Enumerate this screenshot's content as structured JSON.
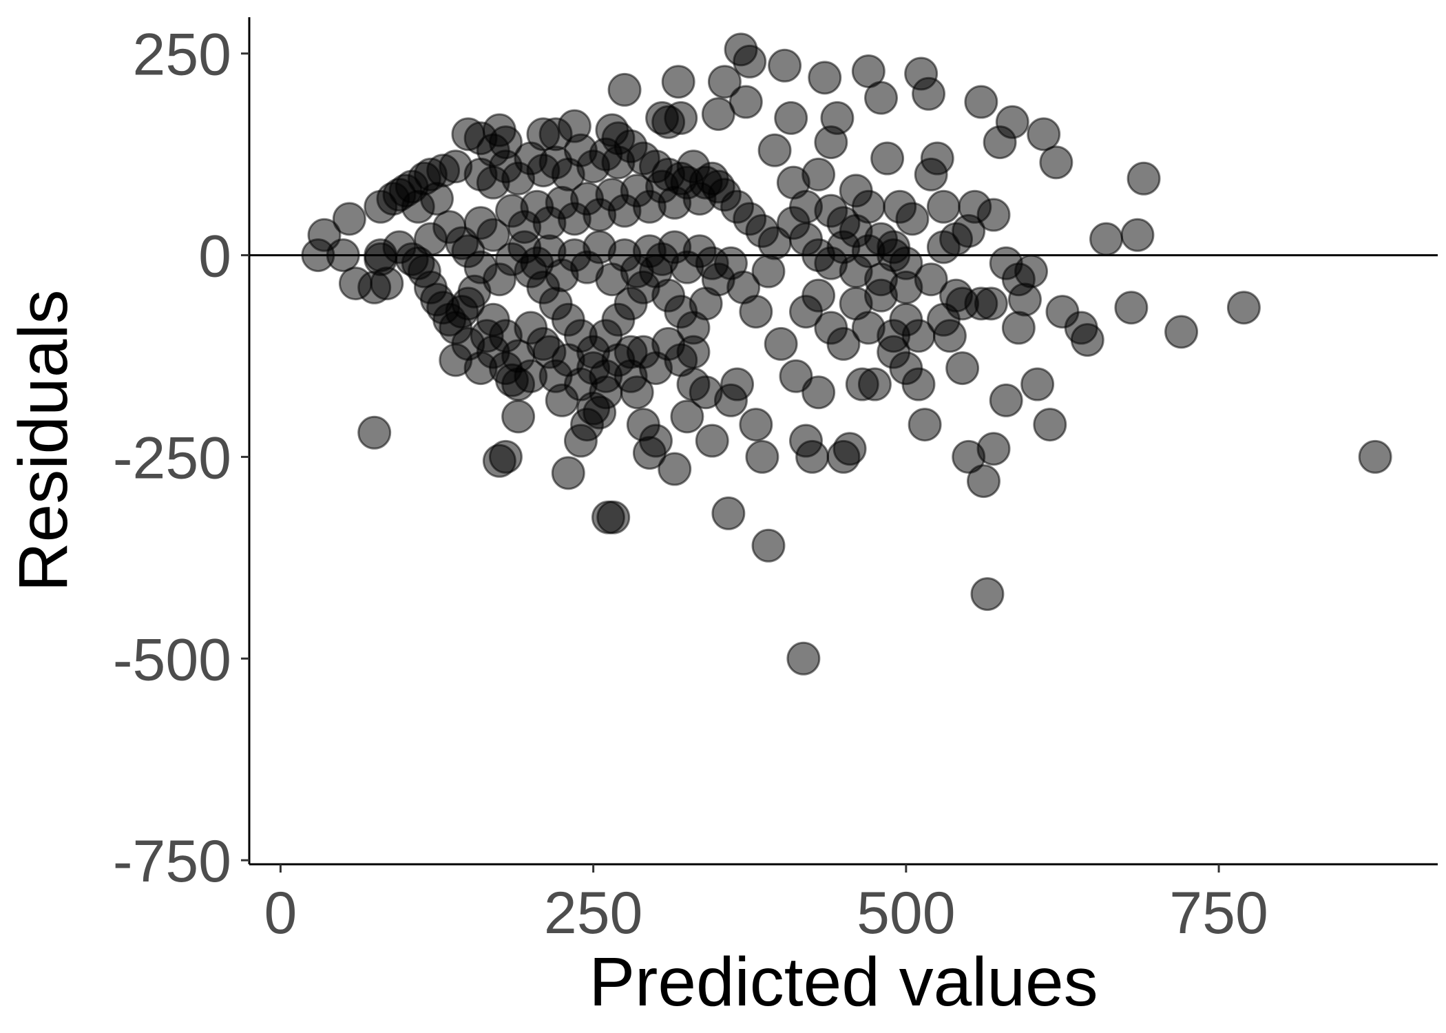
{
  "chart_data": {
    "type": "scatter",
    "xlabel": "Predicted values",
    "ylabel": "Residuals",
    "xlim": [
      -25,
      925
    ],
    "ylim": [
      -755,
      295
    ],
    "x_ticks": [
      0,
      250,
      500,
      750
    ],
    "x_tick_labels": [
      "0",
      "250",
      "500",
      "750"
    ],
    "y_ticks": [
      250,
      0,
      -250,
      -500,
      -750
    ],
    "y_tick_labels": [
      "250",
      "0",
      "-250",
      "-500",
      "-750"
    ],
    "reference_line_y": 0,
    "grid": false,
    "legend": "none",
    "point_color": "#000000",
    "point_alpha": 0.5,
    "points": [
      [
        30,
        0
      ],
      [
        35,
        25
      ],
      [
        50,
        0
      ],
      [
        55,
        45
      ],
      [
        60,
        -35
      ],
      [
        75,
        -220
      ],
      [
        75,
        -40
      ],
      [
        80,
        60
      ],
      [
        80,
        0
      ],
      [
        85,
        -35
      ],
      [
        90,
        70
      ],
      [
        95,
        75
      ],
      [
        100,
        80
      ],
      [
        105,
        85
      ],
      [
        110,
        60
      ],
      [
        115,
        95
      ],
      [
        120,
        100
      ],
      [
        125,
        70
      ],
      [
        130,
        105
      ],
      [
        140,
        110
      ],
      [
        110,
        -10
      ],
      [
        115,
        -20
      ],
      [
        120,
        -40
      ],
      [
        125,
        -55
      ],
      [
        130,
        -65
      ],
      [
        135,
        -80
      ],
      [
        140,
        -90
      ],
      [
        145,
        -70
      ],
      [
        150,
        -60
      ],
      [
        155,
        -45
      ],
      [
        150,
        150
      ],
      [
        160,
        145
      ],
      [
        170,
        130
      ],
      [
        175,
        155
      ],
      [
        180,
        140
      ],
      [
        165,
        -100
      ],
      [
        170,
        -120
      ],
      [
        180,
        -140
      ],
      [
        185,
        -155
      ],
      [
        190,
        -160
      ],
      [
        175,
        -255
      ],
      [
        180,
        -250
      ],
      [
        190,
        -200
      ],
      [
        200,
        -150
      ],
      [
        210,
        150
      ],
      [
        215,
        -120
      ],
      [
        220,
        150
      ],
      [
        225,
        -180
      ],
      [
        230,
        -270
      ],
      [
        235,
        160
      ],
      [
        240,
        -230
      ],
      [
        245,
        -210
      ],
      [
        250,
        -190
      ],
      [
        255,
        -195
      ],
      [
        260,
        -170
      ],
      [
        262,
        -325
      ],
      [
        266,
        -325
      ],
      [
        265,
        155
      ],
      [
        270,
        145
      ],
      [
        275,
        205
      ],
      [
        280,
        -120
      ],
      [
        285,
        -170
      ],
      [
        290,
        -210
      ],
      [
        295,
        -245
      ],
      [
        300,
        -230
      ],
      [
        305,
        170
      ],
      [
        310,
        165
      ],
      [
        315,
        -265
      ],
      [
        318,
        215
      ],
      [
        320,
        170
      ],
      [
        325,
        -200
      ],
      [
        330,
        -160
      ],
      [
        340,
        -170
      ],
      [
        345,
        -230
      ],
      [
        350,
        175
      ],
      [
        355,
        215
      ],
      [
        358,
        -320
      ],
      [
        360,
        -180
      ],
      [
        365,
        -160
      ],
      [
        368,
        255
      ],
      [
        372,
        190
      ],
      [
        375,
        240
      ],
      [
        380,
        -210
      ],
      [
        385,
        -250
      ],
      [
        390,
        -360
      ],
      [
        395,
        130
      ],
      [
        400,
        -110
      ],
      [
        403,
        235
      ],
      [
        408,
        170
      ],
      [
        412,
        -150
      ],
      [
        418,
        -500
      ],
      [
        420,
        -230
      ],
      [
        425,
        -250
      ],
      [
        430,
        -170
      ],
      [
        435,
        220
      ],
      [
        440,
        140
      ],
      [
        445,
        170
      ],
      [
        450,
        -250
      ],
      [
        455,
        -240
      ],
      [
        460,
        80
      ],
      [
        465,
        -160
      ],
      [
        470,
        228
      ],
      [
        475,
        -160
      ],
      [
        480,
        195
      ],
      [
        485,
        120
      ],
      [
        490,
        -100
      ],
      [
        495,
        60
      ],
      [
        500,
        -80
      ],
      [
        505,
        45
      ],
      [
        510,
        -160
      ],
      [
        512,
        225
      ],
      [
        515,
        -210
      ],
      [
        518,
        200
      ],
      [
        520,
        100
      ],
      [
        525,
        120
      ],
      [
        530,
        -80
      ],
      [
        535,
        -100
      ],
      [
        540,
        20
      ],
      [
        545,
        -140
      ],
      [
        550,
        -250
      ],
      [
        555,
        60
      ],
      [
        560,
        190
      ],
      [
        562,
        -280
      ],
      [
        565,
        -420
      ],
      [
        568,
        -60
      ],
      [
        570,
        -240
      ],
      [
        575,
        140
      ],
      [
        580,
        -180
      ],
      [
        585,
        165
      ],
      [
        590,
        -90
      ],
      [
        595,
        -55
      ],
      [
        600,
        -20
      ],
      [
        605,
        -160
      ],
      [
        610,
        150
      ],
      [
        615,
        -210
      ],
      [
        620,
        115
      ],
      [
        625,
        -70
      ],
      [
        640,
        -90
      ],
      [
        645,
        -105
      ],
      [
        660,
        20
      ],
      [
        680,
        -65
      ],
      [
        685,
        25
      ],
      [
        690,
        95
      ],
      [
        720,
        -95
      ],
      [
        770,
        -65
      ],
      [
        875,
        -250
      ],
      [
        80,
        -5
      ],
      [
        95,
        10
      ],
      [
        105,
        -5
      ],
      [
        120,
        20
      ],
      [
        135,
        35
      ],
      [
        145,
        15
      ],
      [
        160,
        40
      ],
      [
        170,
        25
      ],
      [
        185,
        55
      ],
      [
        195,
        35
      ],
      [
        205,
        60
      ],
      [
        215,
        40
      ],
      [
        225,
        65
      ],
      [
        235,
        45
      ],
      [
        245,
        70
      ],
      [
        255,
        50
      ],
      [
        265,
        75
      ],
      [
        275,
        55
      ],
      [
        285,
        80
      ],
      [
        295,
        60
      ],
      [
        305,
        85
      ],
      [
        315,
        65
      ],
      [
        325,
        90
      ],
      [
        335,
        70
      ],
      [
        345,
        95
      ],
      [
        355,
        75
      ],
      [
        365,
        60
      ],
      [
        375,
        45
      ],
      [
        385,
        30
      ],
      [
        395,
        15
      ],
      [
        200,
        -20
      ],
      [
        210,
        -40
      ],
      [
        220,
        -60
      ],
      [
        230,
        -80
      ],
      [
        240,
        -100
      ],
      [
        250,
        -120
      ],
      [
        260,
        -100
      ],
      [
        270,
        -80
      ],
      [
        280,
        -60
      ],
      [
        290,
        -40
      ],
      [
        300,
        -20
      ],
      [
        310,
        -50
      ],
      [
        320,
        -70
      ],
      [
        330,
        -90
      ],
      [
        340,
        -60
      ],
      [
        350,
        -30
      ],
      [
        360,
        -10
      ],
      [
        370,
        -40
      ],
      [
        380,
        -70
      ],
      [
        390,
        -20
      ],
      [
        150,
        5
      ],
      [
        160,
        -15
      ],
      [
        175,
        -30
      ],
      [
        185,
        -5
      ],
      [
        195,
        10
      ],
      [
        205,
        -10
      ],
      [
        215,
        5
      ],
      [
        225,
        -25
      ],
      [
        235,
        0
      ],
      [
        245,
        -15
      ],
      [
        255,
        10
      ],
      [
        265,
        -30
      ],
      [
        275,
        0
      ],
      [
        285,
        -20
      ],
      [
        295,
        5
      ],
      [
        305,
        -5
      ],
      [
        315,
        10
      ],
      [
        325,
        -15
      ],
      [
        335,
        5
      ],
      [
        345,
        -10
      ],
      [
        160,
        100
      ],
      [
        170,
        90
      ],
      [
        180,
        110
      ],
      [
        190,
        95
      ],
      [
        200,
        120
      ],
      [
        210,
        105
      ],
      [
        220,
        115
      ],
      [
        230,
        100
      ],
      [
        240,
        130
      ],
      [
        250,
        110
      ],
      [
        260,
        125
      ],
      [
        270,
        115
      ],
      [
        280,
        135
      ],
      [
        290,
        120
      ],
      [
        300,
        110
      ],
      [
        310,
        100
      ],
      [
        320,
        95
      ],
      [
        330,
        110
      ],
      [
        340,
        90
      ],
      [
        350,
        85
      ],
      [
        410,
        40
      ],
      [
        420,
        20
      ],
      [
        430,
        0
      ],
      [
        440,
        -10
      ],
      [
        450,
        10
      ],
      [
        460,
        -20
      ],
      [
        470,
        5
      ],
      [
        480,
        -30
      ],
      [
        490,
        0
      ],
      [
        500,
        -40
      ],
      [
        420,
        -70
      ],
      [
        430,
        -50
      ],
      [
        440,
        -90
      ],
      [
        450,
        -110
      ],
      [
        460,
        -60
      ],
      [
        470,
        -90
      ],
      [
        480,
        -50
      ],
      [
        490,
        -120
      ],
      [
        500,
        -140
      ],
      [
        510,
        -100
      ],
      [
        410,
        90
      ],
      [
        420,
        60
      ],
      [
        430,
        100
      ],
      [
        440,
        55
      ],
      [
        450,
        40
      ],
      [
        460,
        30
      ],
      [
        470,
        60
      ],
      [
        480,
        20
      ],
      [
        490,
        10
      ],
      [
        500,
        -10
      ],
      [
        520,
        -30
      ],
      [
        530,
        10
      ],
      [
        540,
        -50
      ],
      [
        550,
        30
      ],
      [
        560,
        -60
      ],
      [
        570,
        50
      ],
      [
        580,
        -10
      ],
      [
        590,
        -30
      ],
      [
        530,
        60
      ],
      [
        545,
        -60
      ],
      [
        140,
        -130
      ],
      [
        150,
        -110
      ],
      [
        160,
        -140
      ],
      [
        170,
        -80
      ],
      [
        180,
        -100
      ],
      [
        190,
        -125
      ],
      [
        200,
        -90
      ],
      [
        210,
        -110
      ],
      [
        220,
        -150
      ],
      [
        230,
        -130
      ],
      [
        240,
        -160
      ],
      [
        250,
        -140
      ],
      [
        260,
        -150
      ],
      [
        270,
        -130
      ],
      [
        280,
        -150
      ],
      [
        290,
        -120
      ],
      [
        300,
        -140
      ],
      [
        310,
        -110
      ],
      [
        320,
        -130
      ],
      [
        330,
        -120
      ]
    ]
  }
}
